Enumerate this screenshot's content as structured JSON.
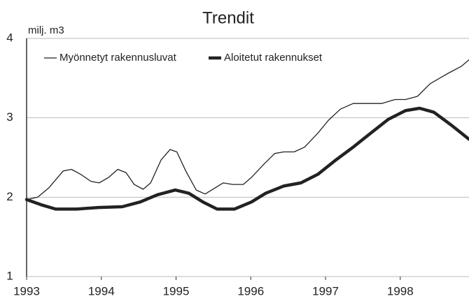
{
  "chart_data": {
    "type": "line",
    "title": "Trendit",
    "y_axis_label": "milj. m3",
    "xlim": [
      1993,
      1998.92
    ],
    "xticks": [
      1993,
      1994,
      1995,
      1996,
      1997,
      1998
    ],
    "ylim": [
      1,
      4
    ],
    "yticks": [
      1,
      2,
      3,
      4
    ],
    "grid": true,
    "legend": "top-left",
    "series": [
      {
        "name": "Myönnetyt rakennusluvat",
        "color": "#222222",
        "width": 1.3,
        "x": [
          1993.0,
          1993.15,
          1993.3,
          1993.49,
          1993.6,
          1993.72,
          1993.86,
          1993.97,
          1994.1,
          1994.22,
          1994.33,
          1994.44,
          1994.56,
          1994.66,
          1994.8,
          1994.92,
          1995.01,
          1995.13,
          1995.27,
          1995.39,
          1995.51,
          1995.63,
          1995.76,
          1995.9,
          1996.01,
          1996.18,
          1996.32,
          1996.44,
          1996.58,
          1996.72,
          1996.9,
          1997.04,
          1997.2,
          1997.37,
          1997.56,
          1997.75,
          1997.93,
          1998.07,
          1998.23,
          1998.4,
          1998.64,
          1998.82,
          1998.92
        ],
        "values": [
          1.97,
          2.0,
          2.12,
          2.33,
          2.35,
          2.29,
          2.2,
          2.18,
          2.25,
          2.35,
          2.31,
          2.16,
          2.1,
          2.18,
          2.47,
          2.6,
          2.57,
          2.33,
          2.09,
          2.04,
          2.11,
          2.18,
          2.16,
          2.16,
          2.25,
          2.42,
          2.55,
          2.57,
          2.57,
          2.63,
          2.81,
          2.97,
          3.11,
          3.18,
          3.18,
          3.18,
          3.23,
          3.23,
          3.27,
          3.43,
          3.56,
          3.65,
          3.73
        ]
      },
      {
        "name": "Aloitetut rakennukset",
        "color": "#222222",
        "width": 4.5,
        "x": [
          1993.0,
          1993.21,
          1993.39,
          1993.67,
          1993.96,
          1994.28,
          1994.52,
          1994.75,
          1994.99,
          1995.17,
          1995.36,
          1995.55,
          1995.78,
          1996.01,
          1996.2,
          1996.44,
          1996.67,
          1996.9,
          1997.14,
          1997.37,
          1997.61,
          1997.84,
          1998.07,
          1998.26,
          1998.45,
          1998.68,
          1998.92
        ],
        "values": [
          1.97,
          1.9,
          1.85,
          1.85,
          1.87,
          1.88,
          1.94,
          2.03,
          2.09,
          2.05,
          1.94,
          1.85,
          1.85,
          1.94,
          2.05,
          2.14,
          2.18,
          2.29,
          2.47,
          2.63,
          2.81,
          2.98,
          3.09,
          3.12,
          3.07,
          2.91,
          2.73
        ]
      }
    ]
  }
}
